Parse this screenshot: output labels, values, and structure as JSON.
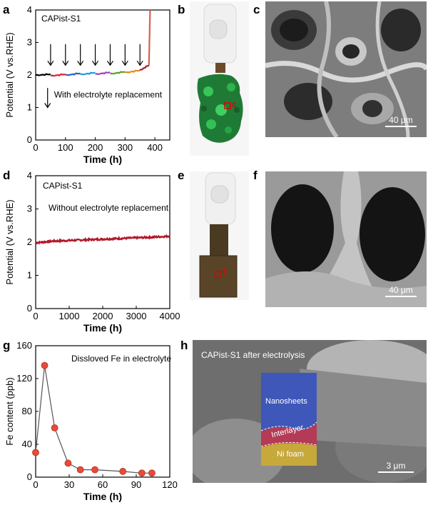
{
  "panel_labels": [
    "a",
    "b",
    "c",
    "d",
    "e",
    "f",
    "g",
    "h"
  ],
  "chart_data": [
    {
      "panel": "a",
      "type": "line",
      "annotation": "CAPist-S1",
      "legend_text": "With electrolyte replacement",
      "xlabel": "Time (h)",
      "ylabel": "Potential (V vs.RHE)",
      "xlim": [
        0,
        450
      ],
      "ylim": [
        0,
        4
      ],
      "xticks": [
        0,
        100,
        200,
        300,
        400
      ],
      "yticks": [
        0,
        1,
        2,
        3,
        4
      ],
      "arrows_at_x": [
        50,
        100,
        150,
        200,
        250,
        300,
        350
      ],
      "series": [
        {
          "color": "#000000",
          "x": [
            0,
            50
          ],
          "y": [
            2.0,
            2.02
          ]
        },
        {
          "color": "#e0212d",
          "x": [
            50,
            100
          ],
          "y": [
            1.98,
            2.02
          ]
        },
        {
          "color": "#2e5fc4",
          "x": [
            100,
            150
          ],
          "y": [
            2.0,
            2.05
          ]
        },
        {
          "color": "#1f9ad8",
          "x": [
            150,
            200
          ],
          "y": [
            2.02,
            2.07
          ]
        },
        {
          "color": "#a23fc4",
          "x": [
            200,
            250
          ],
          "y": [
            2.03,
            2.08
          ]
        },
        {
          "color": "#55a02e",
          "x": [
            250,
            300
          ],
          "y": [
            2.04,
            2.1
          ]
        },
        {
          "color": "#e88a1b",
          "x": [
            300,
            350
          ],
          "y": [
            2.08,
            2.14
          ]
        },
        {
          "color": "#b2182b",
          "x": [
            350,
            380
          ],
          "y": [
            2.15,
            2.3
          ]
        },
        {
          "color": "#d6604d",
          "x": [
            380,
            384
          ],
          "y": [
            2.3,
            4.0
          ]
        }
      ]
    },
    {
      "panel": "d",
      "type": "line",
      "annotation": "CAPist-S1",
      "legend_text": "Without electrolyte replacement",
      "xlabel": "Time (h)",
      "ylabel": "Potential (V vs.RHE)",
      "xlim": [
        0,
        4000
      ],
      "ylim": [
        0,
        4
      ],
      "xticks": [
        0,
        1000,
        2000,
        3000,
        4000
      ],
      "yticks": [
        0,
        1,
        2,
        3,
        4
      ],
      "series": [
        {
          "color": "#b2182b",
          "x": [
            0,
            500,
            1000,
            1500,
            2000,
            2500,
            3000,
            3500,
            4000
          ],
          "y": [
            1.98,
            2.03,
            2.05,
            2.07,
            2.09,
            2.11,
            2.13,
            2.15,
            2.18
          ]
        }
      ]
    },
    {
      "panel": "g",
      "type": "scatter",
      "annotation": "Dissloved Fe in electrolyte",
      "xlabel": "Time (h)",
      "ylabel": "Fe content (ppb)",
      "xlim": [
        0,
        120
      ],
      "ylim": [
        0,
        160
      ],
      "xticks": [
        0,
        30,
        60,
        90,
        120
      ],
      "yticks": [
        0,
        40,
        80,
        120,
        160
      ],
      "marker_color": "#e84a3c",
      "series": [
        {
          "x": [
            0,
            8,
            17,
            29,
            40,
            53,
            78,
            95,
            104
          ],
          "y": [
            30,
            136,
            60,
            17,
            9,
            9,
            7,
            5,
            5
          ]
        }
      ]
    }
  ],
  "scale_bars": {
    "c": "40 μm",
    "f": "40 μm",
    "h": "3 μm"
  },
  "photo_marks": {
    "b": "c",
    "e": "f"
  },
  "sem_h": {
    "title": "CAPist-S1 after electrolysis",
    "layers": [
      "Nanosheets",
      "Interlayer",
      "Ni foam"
    ]
  },
  "colors": {
    "nanosheets": "#3f57b8",
    "interlayer": "#b43a55",
    "ni_foam": "#c7a83a",
    "photo_bg": "#ffffff",
    "foam_green": "#2fb34a"
  }
}
